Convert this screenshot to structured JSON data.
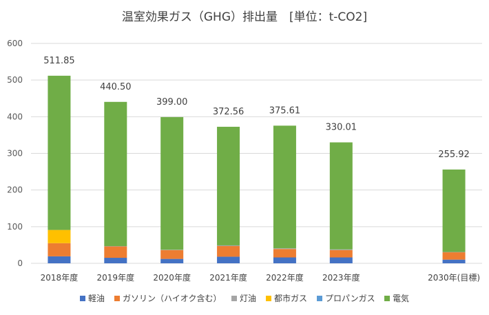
{
  "chart_data": {
    "type": "bar",
    "stacked": true,
    "title": "温室効果ガス（GHG）排出量　[単位：t-CO2]",
    "xlabel": "",
    "ylabel": "",
    "ylim": [
      0,
      600
    ],
    "yticks": [
      0,
      100,
      200,
      300,
      400,
      500,
      600
    ],
    "grid": true,
    "legend_position": "bottom",
    "categories": [
      "2018年度",
      "2019年度",
      "2020年度",
      "2021年度",
      "2022年度",
      "2023年度",
      "",
      "2030年(目標)"
    ],
    "totals": [
      "511.85",
      "440.50",
      "399.00",
      "372.56",
      "375.61",
      "330.01",
      "",
      "255.92"
    ],
    "series": [
      {
        "name": "軽油",
        "color": "#4472c4",
        "values": [
          19,
          15,
          12,
          18,
          16,
          16,
          null,
          10
        ]
      },
      {
        "name": "ガソリン（ハイオク含む）",
        "color": "#ed7d31",
        "values": [
          36,
          31,
          24,
          29,
          23,
          20,
          null,
          20
        ]
      },
      {
        "name": "灯油",
        "color": "#a5a5a5",
        "values": [
          0,
          1,
          1,
          2,
          2,
          2,
          null,
          1
        ]
      },
      {
        "name": "都市ガス",
        "color": "#ffc000",
        "values": [
          36,
          0,
          0,
          0,
          0,
          0,
          null,
          0
        ]
      },
      {
        "name": "プロパンガス",
        "color": "#5b9bd5",
        "values": [
          0,
          0,
          0,
          0,
          0,
          0,
          null,
          0
        ]
      },
      {
        "name": "電気",
        "color": "#70ad47",
        "values": [
          420.85,
          393.5,
          362,
          323.56,
          334.61,
          292.01,
          null,
          224.92
        ]
      }
    ]
  }
}
